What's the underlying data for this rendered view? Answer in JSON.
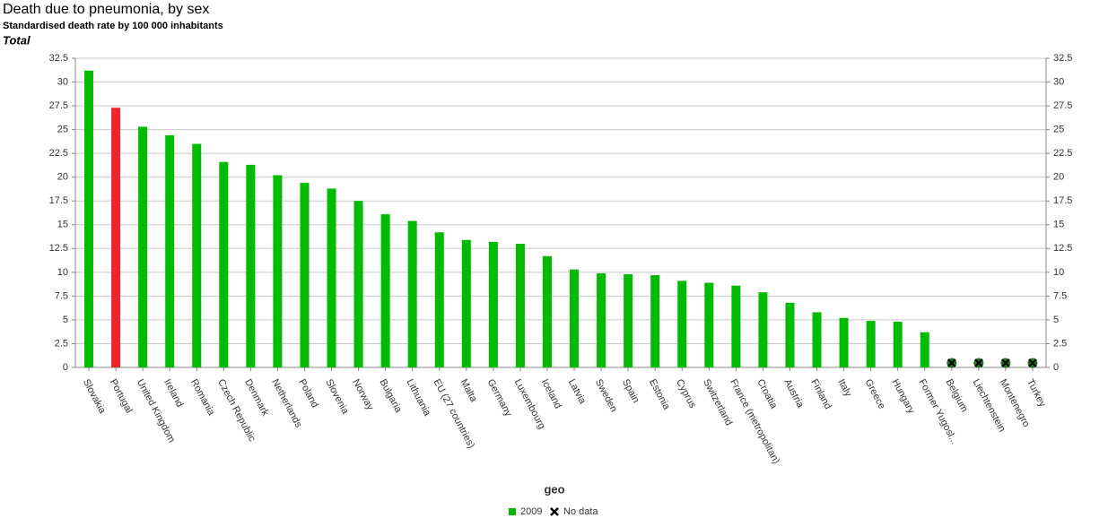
{
  "chart_data": {
    "type": "bar",
    "title": "Death due to pneumonia, by sex",
    "subtitle": "Standardised death rate by 100 000 inhabitants",
    "sex_label": "Total",
    "x_label": "geo",
    "categories": [
      "Slovakia",
      "Portugal",
      "United Kingdom",
      "Ireland",
      "Romania",
      "Czech Republic",
      "Denmark",
      "Netherlands",
      "Poland",
      "Slovenia",
      "Norway",
      "Bulgaria",
      "Lithuania",
      "EU (27 countries)",
      "Malta",
      "Germany",
      "Luxembourg",
      "Iceland",
      "Latvia",
      "Sweden",
      "Spain",
      "Estonia",
      "Cyprus",
      "Switzerland",
      "France (metropolitan)",
      "Croatia",
      "Austria",
      "Finland",
      "Italy",
      "Greece",
      "Hungary",
      "Former Yugosl...",
      "Belgium",
      "Liechtenstein",
      "Montenegro",
      "Turkey"
    ],
    "series": [
      {
        "name": "2009",
        "color": "#00bb00",
        "values": [
          31.2,
          27.3,
          25.3,
          24.4,
          23.5,
          21.6,
          21.3,
          20.2,
          19.4,
          18.8,
          17.5,
          16.1,
          15.4,
          14.2,
          13.4,
          13.2,
          13.0,
          11.7,
          10.3,
          9.9,
          9.8,
          9.7,
          9.1,
          8.9,
          8.6,
          7.9,
          6.8,
          5.8,
          5.2,
          4.9,
          4.8,
          3.7,
          null,
          null,
          null,
          null
        ]
      }
    ],
    "highlight": {
      "index": 1,
      "color": "#e8262c"
    },
    "no_data_label": "No data",
    "ylim": [
      0,
      32.5
    ],
    "yticks": [
      0,
      2.5,
      5,
      7.5,
      10,
      12.5,
      15,
      17.5,
      20,
      22.5,
      25,
      27.5,
      30,
      32.5
    ],
    "grid": true
  }
}
